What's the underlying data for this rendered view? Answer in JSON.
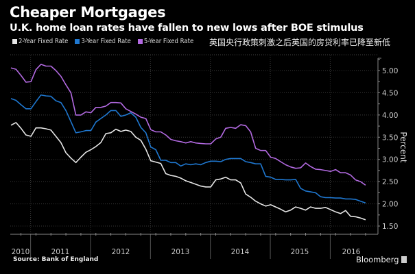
{
  "title": "Cheaper Mortgages",
  "subtitle": "U.K. home loan rates have fallen to new lows after BOE stimulus",
  "chinese_caption": "英国央行政策刺激之后英国的房贷利率已降至新低",
  "source": "Source: Bank of England",
  "brand": "Bloomberg",
  "chart_data": {
    "type": "line",
    "title": "Cheaper Mortgages",
    "subtitle": "U.K. home loan rates have fallen to new lows after BOE stimulus",
    "xlabel": "",
    "ylabel": "Percent",
    "ylim": [
      1.35,
      5.3
    ],
    "yticks": [
      5.0,
      4.5,
      4.0,
      3.5,
      3.0,
      2.5,
      2.0,
      1.5
    ],
    "ytick_labels": [
      "5.00",
      "4.50",
      "4.00",
      "3.50",
      "3.00",
      "2.50",
      "2.00",
      "1.50"
    ],
    "x_start": "2010-09",
    "x_frequency": "monthly",
    "x_tick_labels": [
      "2010",
      "2011",
      "2012",
      "2013",
      "2014",
      "2015",
      "2016"
    ],
    "grid": true,
    "legend_position": "top-left",
    "series": [
      {
        "name": "2-Year Fixed Rate",
        "color": "#e6e6e6",
        "values": [
          3.77,
          3.83,
          3.7,
          3.55,
          3.52,
          3.71,
          3.71,
          3.69,
          3.66,
          3.52,
          3.38,
          3.15,
          3.03,
          2.93,
          3.05,
          3.16,
          3.22,
          3.29,
          3.38,
          3.58,
          3.6,
          3.68,
          3.63,
          3.66,
          3.63,
          3.5,
          3.43,
          3.23,
          2.97,
          2.94,
          2.91,
          2.68,
          2.64,
          2.62,
          2.58,
          2.52,
          2.48,
          2.44,
          2.4,
          2.38,
          2.38,
          2.54,
          2.56,
          2.6,
          2.54,
          2.54,
          2.47,
          2.22,
          2.15,
          2.06,
          2.0,
          1.95,
          1.98,
          1.93,
          1.88,
          1.82,
          1.86,
          1.93,
          1.9,
          1.86,
          1.93,
          1.9,
          1.9,
          1.92,
          1.87,
          1.82,
          1.78,
          1.85,
          1.72,
          1.71,
          1.68,
          1.64
        ]
      },
      {
        "name": "3-Year Fixed Rate",
        "color": "#1f78d1",
        "values": [
          4.37,
          4.33,
          4.23,
          4.14,
          4.14,
          4.3,
          4.45,
          4.43,
          4.42,
          4.32,
          4.28,
          4.1,
          3.85,
          3.6,
          3.62,
          3.65,
          3.65,
          3.84,
          3.92,
          4.0,
          4.1,
          4.1,
          3.97,
          4.0,
          4.05,
          3.95,
          3.72,
          3.6,
          3.28,
          3.22,
          2.98,
          2.98,
          2.93,
          2.93,
          2.85,
          2.9,
          2.88,
          2.9,
          2.88,
          2.93,
          2.96,
          2.96,
          2.95,
          3.0,
          3.02,
          3.02,
          3.02,
          2.95,
          2.93,
          2.9,
          2.9,
          2.62,
          2.6,
          2.55,
          2.55,
          2.54,
          2.54,
          2.55,
          2.35,
          2.29,
          2.27,
          2.25,
          2.16,
          2.14,
          2.14,
          2.13,
          2.13,
          2.11,
          2.11,
          2.1,
          2.06,
          2.02
        ]
      },
      {
        "name": "5-Year Fixed Rate",
        "color": "#b36ae2",
        "values": [
          5.06,
          5.03,
          4.89,
          4.74,
          4.75,
          5.02,
          5.14,
          5.1,
          5.1,
          5.0,
          4.87,
          4.68,
          4.5,
          4.0,
          4.0,
          4.07,
          4.05,
          4.17,
          4.17,
          4.2,
          4.28,
          4.28,
          4.27,
          4.14,
          4.08,
          4.02,
          3.95,
          3.92,
          3.67,
          3.62,
          3.62,
          3.55,
          3.45,
          3.42,
          3.4,
          3.37,
          3.4,
          3.37,
          3.36,
          3.35,
          3.35,
          3.46,
          3.5,
          3.7,
          3.72,
          3.7,
          3.78,
          3.76,
          3.62,
          3.25,
          3.2,
          3.2,
          3.05,
          3.02,
          2.95,
          2.88,
          2.83,
          2.8,
          2.81,
          2.92,
          2.84,
          2.78,
          2.77,
          2.75,
          2.73,
          2.77,
          2.7,
          2.7,
          2.65,
          2.54,
          2.5,
          2.42
        ]
      }
    ]
  }
}
